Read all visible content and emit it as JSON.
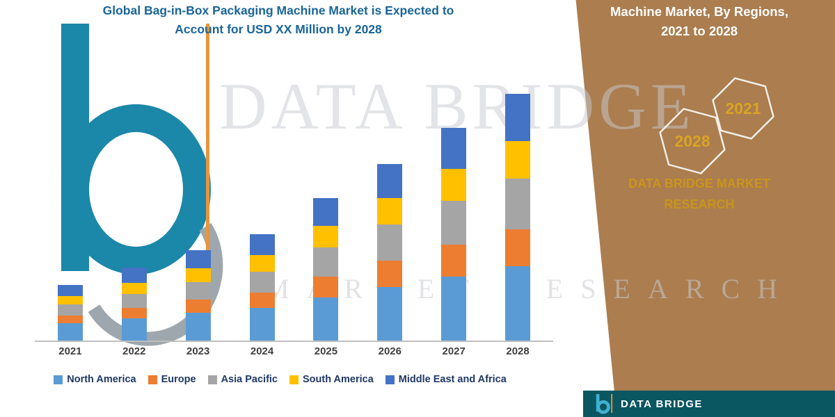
{
  "left_panel": {
    "title_line1": "Global Bag-in-Box Packaging Machine Market is Expected to",
    "title_line2": "Account for USD XX Million by 2028"
  },
  "watermark": {
    "line1": "DATA BRIDGE",
    "line2": "MARKET RESEARCH"
  },
  "chart_data": {
    "type": "bar",
    "stacked": true,
    "title": "Global Bag-in-Box Packaging Machine Market is Expected to Account for USD XX Million by 2028",
    "xlabel": "",
    "ylabel": "",
    "y_axis_visible": false,
    "ylim": [
      0,
      380
    ],
    "grid": false,
    "legend_position": "bottom",
    "categories": [
      "2021",
      "2022",
      "2023",
      "2024",
      "2025",
      "2026",
      "2027",
      "2028"
    ],
    "series": [
      {
        "name": "North America",
        "color": "#5B9BD5",
        "values": [
          25,
          32,
          40,
          47,
          62,
          77,
          92,
          107
        ]
      },
      {
        "name": "Europe",
        "color": "#ED7D31",
        "values": [
          11,
          15,
          19,
          22,
          30,
          38,
          46,
          53
        ]
      },
      {
        "name": "Asia Pacific",
        "color": "#A5A5A5",
        "values": [
          16,
          20,
          25,
          30,
          42,
          52,
          63,
          73
        ]
      },
      {
        "name": "South America",
        "color": "#FFC000",
        "values": [
          12,
          16,
          20,
          24,
          31,
          38,
          46,
          54
        ]
      },
      {
        "name": "Middle East and Africa",
        "color": "#4472C4",
        "values": [
          16,
          22,
          26,
          30,
          40,
          49,
          59,
          68
        ]
      }
    ]
  },
  "right_panel": {
    "title_line1": "Machine Market, By Regions,",
    "title_line2": "2021 to 2028",
    "hexagons": [
      {
        "label": "2028"
      },
      {
        "label": "2021"
      }
    ],
    "brand_line1": "DATA BRIDGE MARKET",
    "brand_line2": "RESEARCH",
    "background_color": "#AB7D4F",
    "accent_gold": "#C9951C"
  },
  "footer": {
    "brand": "DATA BRIDGE",
    "background_color": "#0A5661"
  }
}
